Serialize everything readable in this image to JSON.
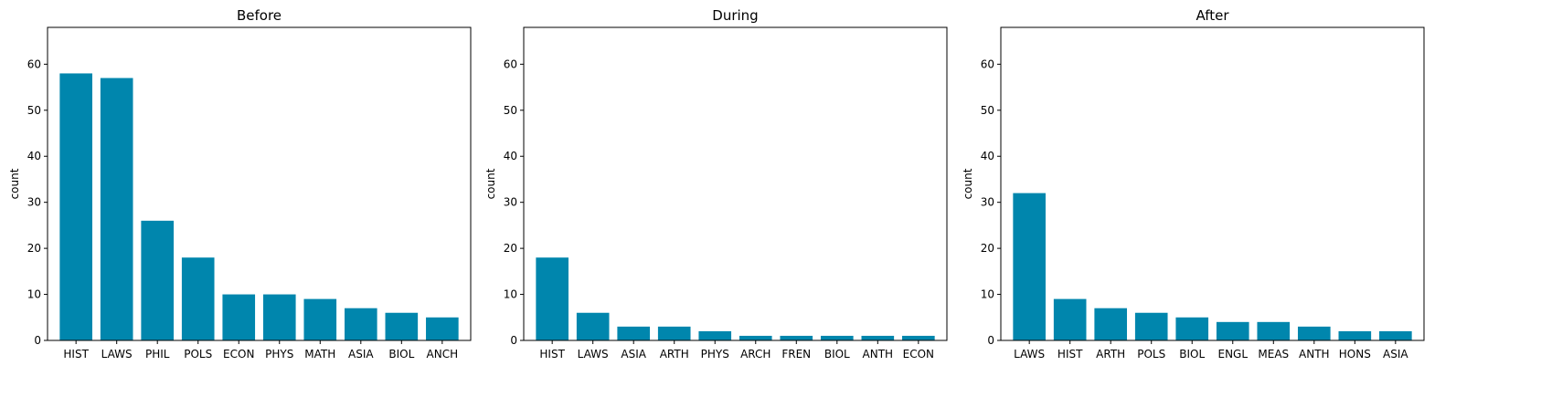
{
  "chart_data": [
    {
      "type": "bar",
      "title": "Before",
      "xlabel": "",
      "ylabel": "count",
      "ylim": [
        0,
        68
      ],
      "yticks": [
        0,
        10,
        20,
        30,
        40,
        50,
        60
      ],
      "categories": [
        "HIST",
        "LAWS",
        "PHIL",
        "POLS",
        "ECON",
        "PHYS",
        "MATH",
        "ASIA",
        "BIOL",
        "ANCH"
      ],
      "values": [
        58,
        57,
        26,
        18,
        10,
        10,
        9,
        7,
        6,
        5
      ]
    },
    {
      "type": "bar",
      "title": "During",
      "xlabel": "",
      "ylabel": "count",
      "ylim": [
        0,
        68
      ],
      "yticks": [
        0,
        10,
        20,
        30,
        40,
        50,
        60
      ],
      "categories": [
        "HIST",
        "LAWS",
        "ASIA",
        "ARTH",
        "PHYS",
        "ARCH",
        "FREN",
        "BIOL",
        "ANTH",
        "ECON"
      ],
      "values": [
        18,
        6,
        3,
        3,
        2,
        1,
        1,
        1,
        1,
        1
      ]
    },
    {
      "type": "bar",
      "title": "After",
      "xlabel": "",
      "ylabel": "count",
      "ylim": [
        0,
        68
      ],
      "yticks": [
        0,
        10,
        20,
        30,
        40,
        50,
        60
      ],
      "categories": [
        "LAWS",
        "HIST",
        "ARTH",
        "POLS",
        "BIOL",
        "ENGL",
        "MEAS",
        "ANTH",
        "HONS",
        "ASIA"
      ],
      "values": [
        32,
        9,
        7,
        6,
        5,
        4,
        4,
        3,
        2,
        2
      ]
    }
  ],
  "colors": {
    "bar": "#0086AD",
    "axis": "#000000"
  }
}
